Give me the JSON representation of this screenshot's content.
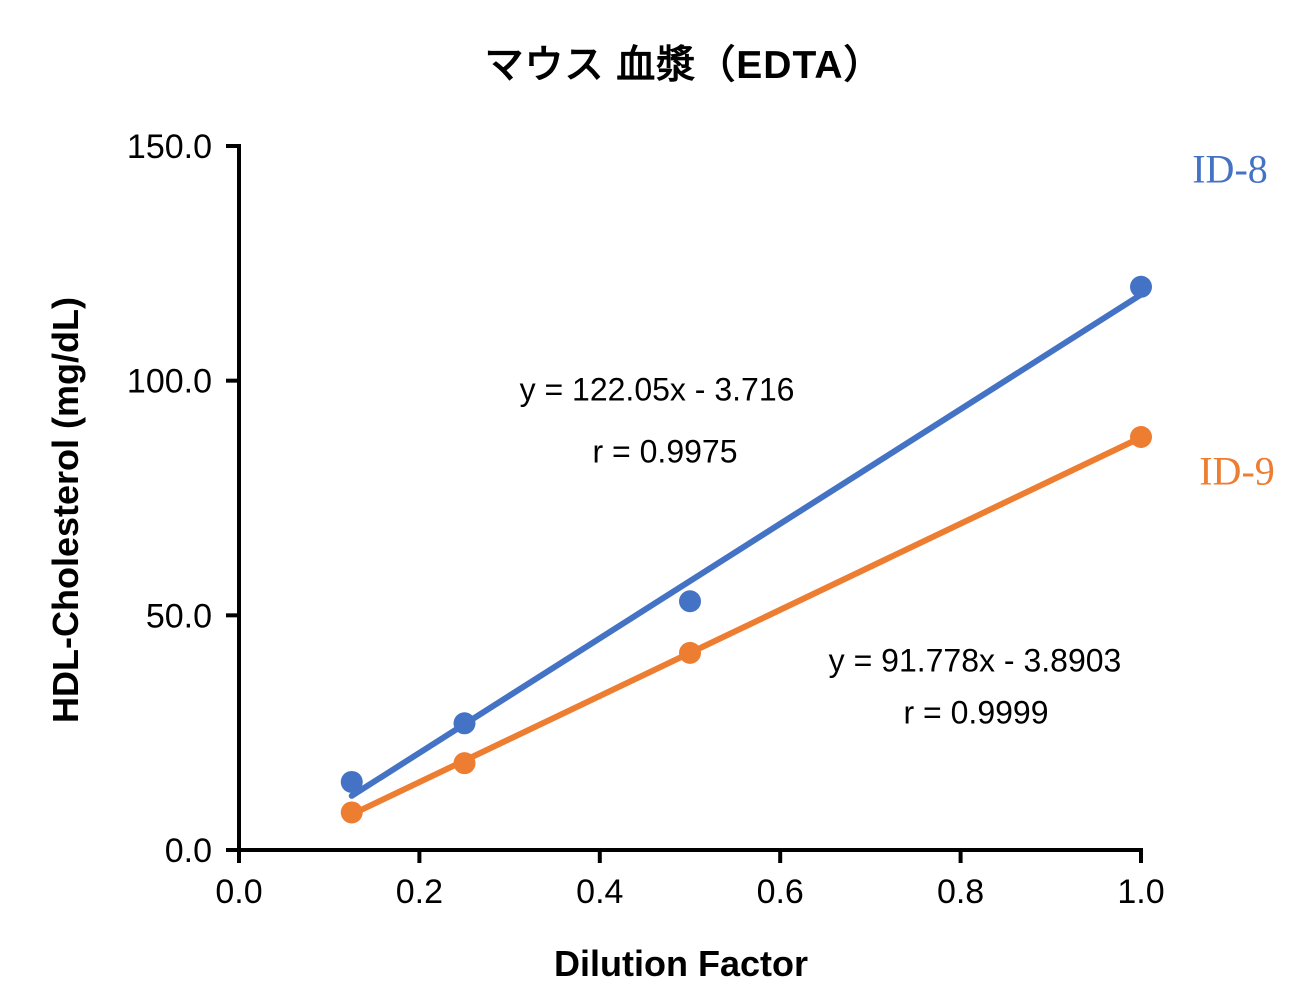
{
  "chart_data": {
    "type": "scatter",
    "title": "マウス 血漿（EDTA）",
    "xlabel": "Dilution Factor",
    "ylabel": "HDL-Cholesterol (mg/dL)",
    "xlim": [
      0.0,
      1.0
    ],
    "ylim": [
      0.0,
      150.0
    ],
    "xticks": [
      "0.0",
      "0.2",
      "0.4",
      "0.6",
      "0.8",
      "1.0"
    ],
    "yticks": [
      "0.0",
      "50.0",
      "100.0",
      "150.0"
    ],
    "grid": false,
    "legend_position": "labels-right-of-last-points",
    "axis_color": "#000000",
    "background": "#ffffff",
    "series": [
      {
        "name": "ID-8",
        "color": "#4472C4",
        "x": [
          0.125,
          0.25,
          0.5,
          1.0
        ],
        "y": [
          14.5,
          27.0,
          53.0,
          120.0
        ],
        "trendline": {
          "slope": 122.05,
          "intercept": -3.716,
          "equation": "y = 122.05x - 3.716",
          "r_label": "r = 0.9975"
        }
      },
      {
        "name": "ID-9",
        "color": "#ED7D31",
        "x": [
          0.125,
          0.25,
          0.5,
          1.0
        ],
        "y": [
          8.0,
          18.5,
          42.0,
          88.0
        ],
        "trendline": {
          "slope": 91.778,
          "intercept": -3.8903,
          "equation": "y = 91.778x - 3.8903",
          "r_label": "r = 0.9999"
        }
      }
    ]
  }
}
